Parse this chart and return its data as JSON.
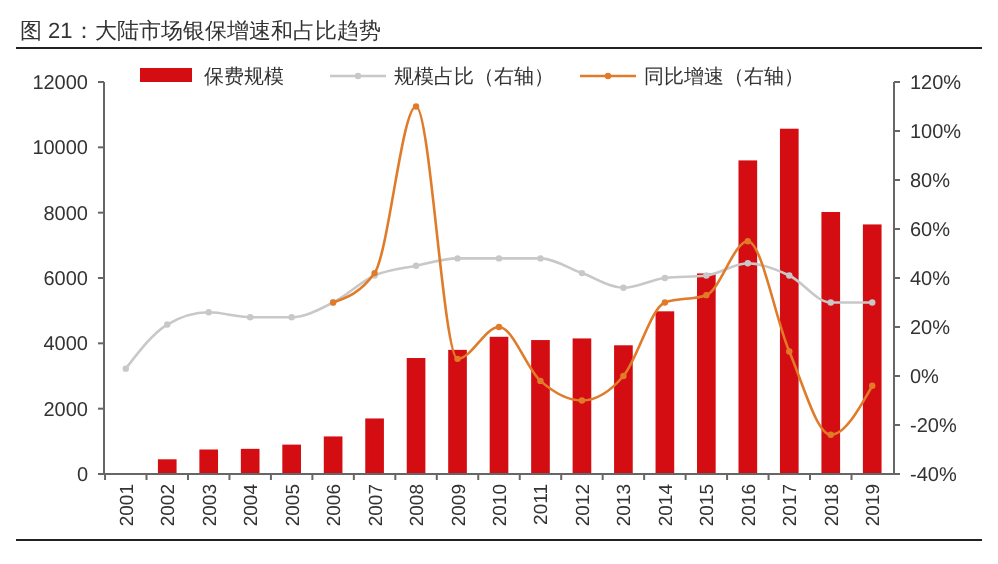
{
  "chart_data": {
    "type": "bar",
    "title": "图 21：大陆市场银保增速和占比趋势",
    "categories": [
      "2001",
      "2002",
      "2003",
      "2004",
      "2005",
      "2006",
      "2007",
      "2008",
      "2009",
      "2010",
      "2011",
      "2012",
      "2013",
      "2014",
      "2015",
      "2016",
      "2017",
      "2018",
      "2019"
    ],
    "series": [
      {
        "name": "保费规模",
        "color": "#d40d12",
        "values": [
          20,
          450,
          750,
          770,
          900,
          1150,
          1700,
          3550,
          3800,
          4200,
          4100,
          4150,
          3940,
          4980,
          6140,
          9600,
          10570,
          8020,
          7640
        ]
      },
      {
        "name": "规模占比（右轴）",
        "type": "line",
        "axis": "y2",
        "color": "#c8c8c8",
        "values": [
          3,
          21,
          26,
          24,
          24,
          30,
          41,
          45,
          48,
          48,
          48,
          42,
          36,
          40,
          41,
          46,
          41,
          30,
          30
        ]
      },
      {
        "name": "同比增速（右轴）",
        "type": "line",
        "axis": "y2",
        "color": "#e07b2a",
        "values": [
          null,
          null,
          null,
          null,
          null,
          30,
          42,
          110,
          7,
          20,
          -2,
          -10,
          0,
          30,
          33,
          55,
          10,
          -24,
          -4
        ]
      }
    ],
    "ylim": [
      0,
      12000
    ],
    "yticks": [
      0,
      2000,
      4000,
      6000,
      8000,
      10000,
      12000
    ],
    "y2lim": [
      -40,
      120
    ],
    "y2ticks": [
      {
        "value": -40,
        "label": "-40%"
      },
      {
        "value": -20,
        "label": "-20%"
      },
      {
        "value": 0,
        "label": "0%"
      },
      {
        "value": 20,
        "label": "20%"
      },
      {
        "value": 40,
        "label": "40%"
      },
      {
        "value": 60,
        "label": "60%"
      },
      {
        "value": 80,
        "label": "80%"
      },
      {
        "value": 100,
        "label": "100%"
      },
      {
        "value": 120,
        "label": "120%"
      }
    ],
    "legend": "top",
    "marker": "circle",
    "grid": false
  }
}
